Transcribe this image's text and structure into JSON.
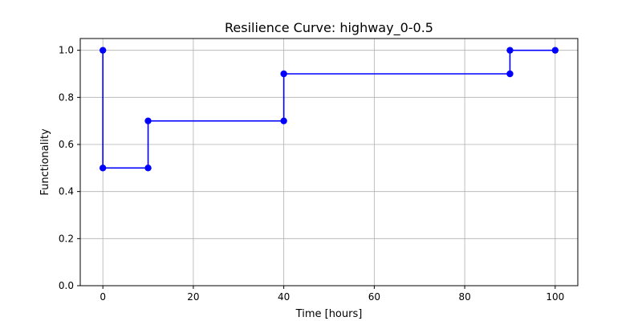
{
  "chart_data": {
    "type": "line",
    "title": "Resilience Curve: highway_0-0.5",
    "xlabel": "Time [hours]",
    "ylabel": "Functionality",
    "xlim": [
      -5,
      105
    ],
    "ylim": [
      0.0,
      1.05
    ],
    "xticks": [
      0,
      20,
      40,
      60,
      80,
      100
    ],
    "yticks": [
      0.0,
      0.2,
      0.4,
      0.6,
      0.8,
      1.0
    ],
    "xtick_labels": [
      "0",
      "20",
      "40",
      "60",
      "80",
      "100"
    ],
    "ytick_labels": [
      "0.0",
      "0.2",
      "0.4",
      "0.6",
      "0.8",
      "1.0"
    ],
    "grid": true,
    "series": [
      {
        "color": "#0000ff",
        "marker": "circle",
        "x": [
          0,
          0,
          10,
          10,
          40,
          40,
          90,
          90,
          100
        ],
        "y": [
          1.0,
          0.5,
          0.5,
          0.7,
          0.7,
          0.9,
          0.9,
          1.0,
          1.0
        ]
      }
    ]
  }
}
